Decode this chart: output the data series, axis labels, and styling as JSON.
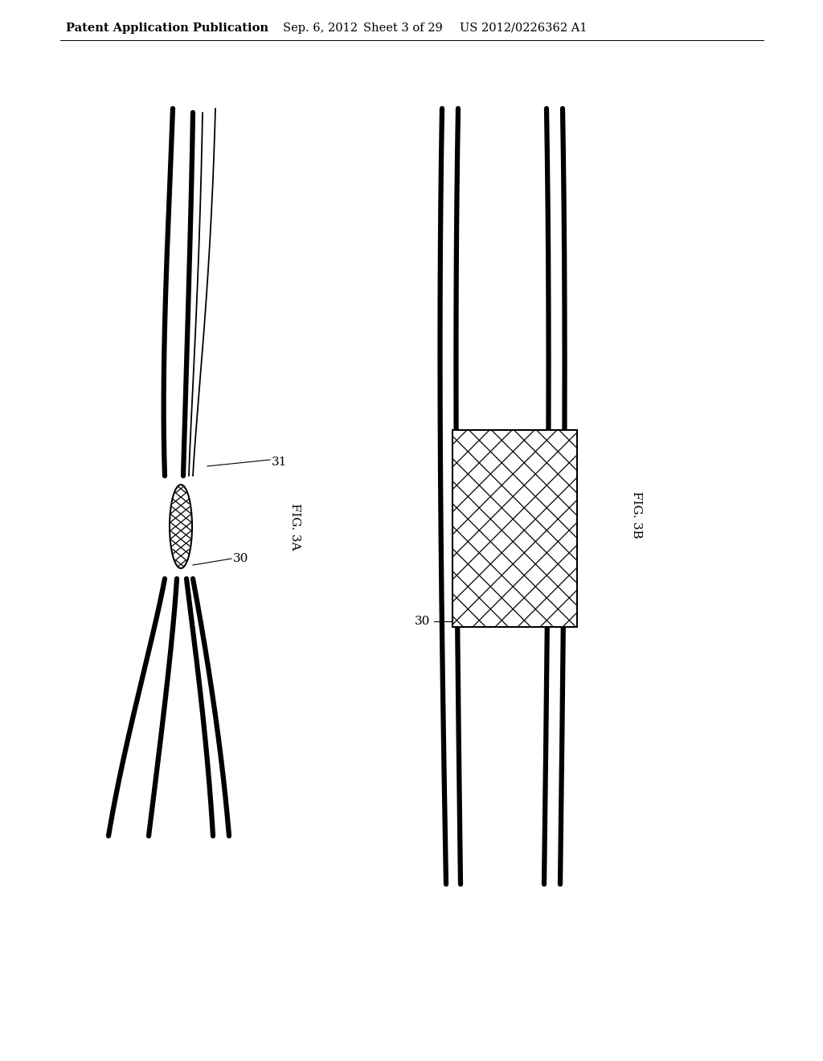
{
  "background_color": "#ffffff",
  "header_text": "Patent Application Publication",
  "header_date": "Sep. 6, 2012",
  "header_sheet": "Sheet 3 of 29",
  "header_patent": "US 2012/0226362 A1",
  "fig3a_label": "FIG. 3A",
  "fig3b_label": "FIG. 3B",
  "label_30": "30",
  "label_31": "31",
  "line_color": "#000000",
  "lw_thick": 4.5,
  "lw_medium": 2.0,
  "lw_thin": 1.3,
  "lw_hatch": 0.9
}
